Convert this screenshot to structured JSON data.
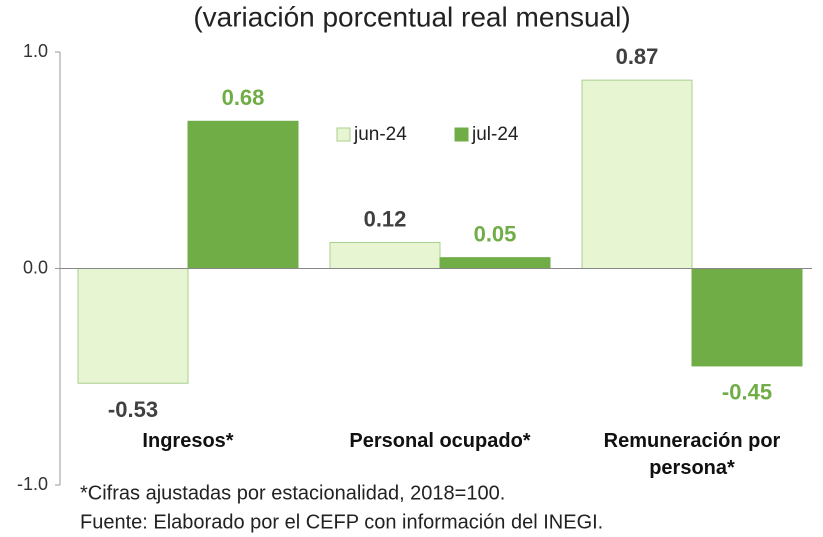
{
  "chart_data": {
    "type": "bar",
    "title": "(variación porcentual real mensual)",
    "categories": [
      "Ingresos*",
      "Personal ocupado*",
      "Remuneración por persona*"
    ],
    "series": [
      {
        "name": "jun-24",
        "color": "#e7f5d3",
        "values": [
          -0.53,
          0.12,
          0.87
        ]
      },
      {
        "name": "jul-24",
        "color": "#70ad47",
        "values": [
          0.68,
          0.05,
          -0.45
        ]
      }
    ],
    "ylim": [
      -1,
      1
    ],
    "yticks": [
      {
        "value": -1,
        "label": "-1.0"
      },
      {
        "value": 0,
        "label": "0.0"
      },
      {
        "value": 1,
        "label": "1.0"
      }
    ],
    "grid": false,
    "legend": "top",
    "notes": [
      "*Cifras ajustadas por estacionalidad, 2018=100.",
      "Fuente: Elaborado por el CEFP con información del INEGI."
    ]
  }
}
